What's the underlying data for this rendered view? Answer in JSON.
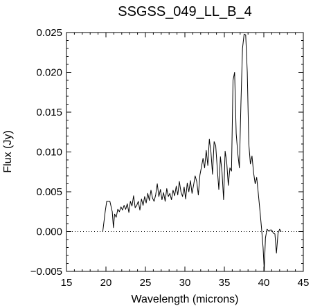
{
  "chart_data": {
    "type": "line",
    "title": "SSGSS_049_LL_B_4",
    "xlabel": "Wavelength (microns)",
    "ylabel": "Flux (Jy)",
    "xlim": [
      15,
      45
    ],
    "ylim": [
      -0.005,
      0.025
    ],
    "x_ticks": [
      15,
      20,
      25,
      30,
      35,
      40,
      45
    ],
    "x_tick_labels": [
      "15",
      "20",
      "25",
      "30",
      "35",
      "40",
      "45"
    ],
    "y_ticks": [
      -0.005,
      0.0,
      0.005,
      0.01,
      0.015,
      0.02,
      0.025
    ],
    "y_tick_labels": [
      "−0.005",
      "0.000",
      "0.005",
      "0.010",
      "0.015",
      "0.020",
      "0.025"
    ],
    "zero_line": "dotted",
    "grid": false,
    "series": [
      {
        "color": "#000000",
        "x": [
          19.6,
          19.9,
          20.1,
          20.3,
          20.5,
          20.8,
          20.95,
          21.1,
          21.3,
          21.5,
          21.7,
          21.9,
          22.1,
          22.3,
          22.5,
          22.7,
          22.9,
          23.1,
          23.3,
          23.5,
          23.7,
          23.9,
          24.1,
          24.3,
          24.5,
          24.7,
          24.9,
          25.1,
          25.3,
          25.5,
          25.7,
          25.9,
          26.1,
          26.3,
          26.5,
          26.7,
          26.9,
          27.1,
          27.3,
          27.5,
          27.7,
          27.9,
          28.1,
          28.3,
          28.5,
          28.7,
          28.9,
          29.1,
          29.3,
          29.5,
          29.7,
          29.9,
          30.1,
          30.3,
          30.5,
          30.7,
          30.9,
          31.1,
          31.3,
          31.5,
          31.7,
          31.9,
          32.1,
          32.3,
          32.5,
          32.7,
          32.9,
          33.1,
          33.3,
          33.5,
          33.7,
          33.9,
          34.1,
          34.3,
          34.5,
          34.7,
          34.9,
          35.1,
          35.3,
          35.5,
          35.7,
          35.9,
          36.1,
          36.3,
          36.5,
          36.7,
          36.9,
          37.1,
          37.3,
          37.5,
          37.7,
          37.9,
          38.1,
          38.3,
          38.5,
          38.7,
          38.9,
          39.1,
          39.3,
          39.5,
          39.7,
          39.9,
          40.05,
          40.2,
          40.4,
          40.6,
          40.8,
          41.0,
          41.2,
          41.4,
          41.6,
          41.8,
          42.0,
          42.2
        ],
        "y": [
          0.0,
          0.0025,
          0.0038,
          0.0038,
          0.0038,
          0.0025,
          0.0005,
          0.0022,
          0.0018,
          0.0028,
          0.0025,
          0.0031,
          0.0027,
          0.0033,
          0.0028,
          0.0035,
          0.0024,
          0.0038,
          0.0032,
          0.0045,
          0.003,
          0.0033,
          0.0038,
          0.0027,
          0.0041,
          0.0033,
          0.0044,
          0.0036,
          0.0048,
          0.0039,
          0.0052,
          0.0042,
          0.0038,
          0.0046,
          0.006,
          0.0044,
          0.0053,
          0.004,
          0.0049,
          0.0038,
          0.0054,
          0.0044,
          0.0048,
          0.004,
          0.0052,
          0.0045,
          0.0057,
          0.0046,
          0.0063,
          0.005,
          0.0044,
          0.0056,
          0.0041,
          0.0061,
          0.005,
          0.0064,
          0.0048,
          0.0058,
          0.007,
          0.0063,
          0.0046,
          0.0071,
          0.0081,
          0.0092,
          0.008,
          0.0102,
          0.0083,
          0.0116,
          0.01,
          0.0072,
          0.0113,
          0.0108,
          0.008,
          0.0053,
          0.0094,
          0.0075,
          0.004,
          0.0101,
          0.0087,
          0.0058,
          0.008,
          0.0076,
          0.019,
          0.02,
          0.0123,
          0.0098,
          0.008,
          0.016,
          0.023,
          0.0248,
          0.0247,
          0.02,
          0.011,
          0.0085,
          0.0095,
          0.0074,
          0.006,
          0.0068,
          0.0048,
          0.0027,
          0.0005,
          -0.002,
          -0.0049,
          -0.0008,
          0.0003,
          0.0001,
          0.0002,
          0.0002,
          -0.0002,
          -0.0003,
          -0.0027,
          -0.0002,
          0.0003,
          0.0
        ]
      }
    ]
  }
}
